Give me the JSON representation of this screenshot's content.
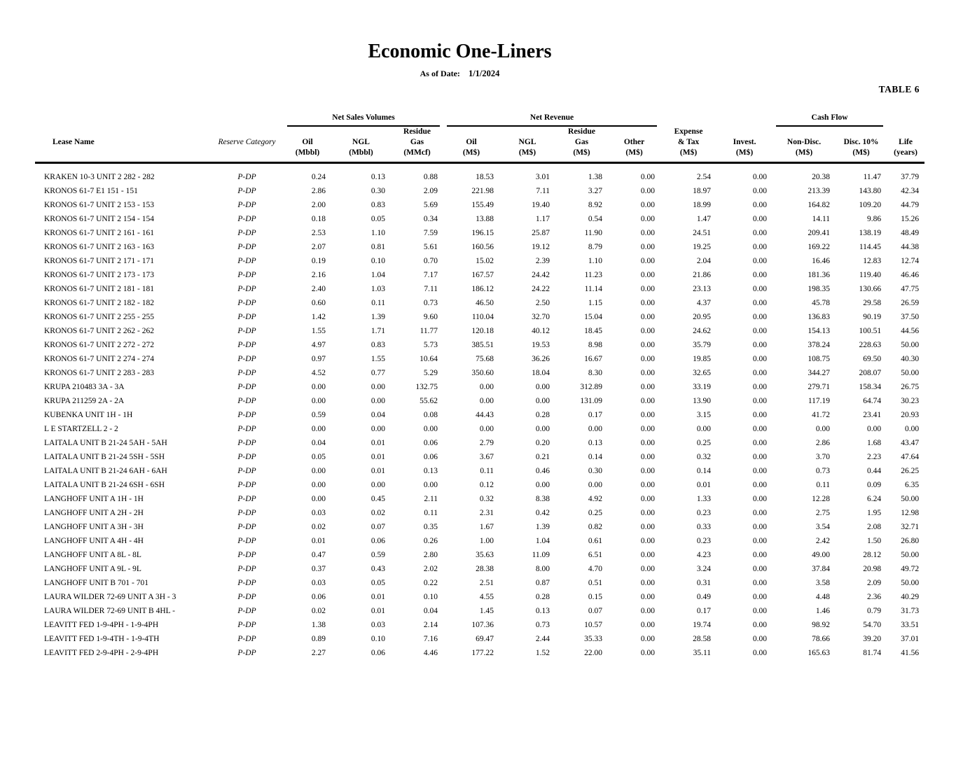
{
  "page": {
    "table_tag": "TABLE 6",
    "title": "Economic One-Liners",
    "as_of_label": "As of Date:",
    "as_of_date": "1/1/2024"
  },
  "table": {
    "groups": [
      {
        "label": "",
        "span": 2,
        "underline": false
      },
      {
        "label": "Net Sales Volumes",
        "span": 3,
        "underline": true
      },
      {
        "label": "Net Revenue",
        "span": 4,
        "underline": true
      },
      {
        "label": "",
        "span": 2,
        "underline": false
      },
      {
        "label": "Cash Flow",
        "span": 2,
        "underline": true
      },
      {
        "label": "",
        "span": 1,
        "underline": false
      }
    ],
    "columns": [
      {
        "name": "lease-name",
        "lines": [
          "Lease Name"
        ]
      },
      {
        "name": "reserve-category",
        "lines": [
          "Reserve Category"
        ]
      },
      {
        "name": "oil-volume",
        "lines": [
          "Oil",
          "(Mbbl)"
        ]
      },
      {
        "name": "ngl-volume",
        "lines": [
          "NGL",
          "(Mbbl)"
        ]
      },
      {
        "name": "residue-gas-volume",
        "lines": [
          "Residue",
          "Gas",
          "(MMcf)"
        ]
      },
      {
        "name": "oil-revenue",
        "lines": [
          "Oil",
          "(M$)"
        ]
      },
      {
        "name": "ngl-revenue",
        "lines": [
          "NGL",
          "(M$)"
        ]
      },
      {
        "name": "residue-gas-revenue",
        "lines": [
          "Residue",
          "Gas",
          "(M$)"
        ]
      },
      {
        "name": "other-revenue",
        "lines": [
          "Other",
          "(M$)"
        ]
      },
      {
        "name": "expense-tax",
        "lines": [
          "Expense",
          "& Tax",
          "(M$)"
        ]
      },
      {
        "name": "investment",
        "lines": [
          "Invest.",
          "(M$)"
        ]
      },
      {
        "name": "cash-flow-non-disc",
        "lines": [
          "Non-Disc.",
          "(M$)"
        ]
      },
      {
        "name": "cash-flow-disc-10",
        "lines": [
          "Disc. 10%",
          "(M$)"
        ]
      },
      {
        "name": "life",
        "lines": [
          "Life",
          "(years)"
        ]
      }
    ],
    "rows": [
      [
        "KRAKEN 10-3 UNIT 2 282 - 282",
        "P-DP",
        "0.24",
        "0.13",
        "0.88",
        "18.53",
        "3.01",
        "1.38",
        "0.00",
        "2.54",
        "0.00",
        "20.38",
        "11.47",
        "37.79"
      ],
      [
        "KRONOS 61-7 E1 151 - 151",
        "P-DP",
        "2.86",
        "0.30",
        "2.09",
        "221.98",
        "7.11",
        "3.27",
        "0.00",
        "18.97",
        "0.00",
        "213.39",
        "143.80",
        "42.34"
      ],
      [
        "KRONOS 61-7 UNIT 2 153 - 153",
        "P-DP",
        "2.00",
        "0.83",
        "5.69",
        "155.49",
        "19.40",
        "8.92",
        "0.00",
        "18.99",
        "0.00",
        "164.82",
        "109.20",
        "44.79"
      ],
      [
        "KRONOS 61-7 UNIT 2 154 - 154",
        "P-DP",
        "0.18",
        "0.05",
        "0.34",
        "13.88",
        "1.17",
        "0.54",
        "0.00",
        "1.47",
        "0.00",
        "14.11",
        "9.86",
        "15.26"
      ],
      [
        "KRONOS 61-7 UNIT 2 161 - 161",
        "P-DP",
        "2.53",
        "1.10",
        "7.59",
        "196.15",
        "25.87",
        "11.90",
        "0.00",
        "24.51",
        "0.00",
        "209.41",
        "138.19",
        "48.49"
      ],
      [
        "KRONOS 61-7 UNIT 2 163 - 163",
        "P-DP",
        "2.07",
        "0.81",
        "5.61",
        "160.56",
        "19.12",
        "8.79",
        "0.00",
        "19.25",
        "0.00",
        "169.22",
        "114.45",
        "44.38"
      ],
      [
        "KRONOS 61-7 UNIT 2 171 - 171",
        "P-DP",
        "0.19",
        "0.10",
        "0.70",
        "15.02",
        "2.39",
        "1.10",
        "0.00",
        "2.04",
        "0.00",
        "16.46",
        "12.83",
        "12.74"
      ],
      [
        "KRONOS 61-7 UNIT 2 173 - 173",
        "P-DP",
        "2.16",
        "1.04",
        "7.17",
        "167.57",
        "24.42",
        "11.23",
        "0.00",
        "21.86",
        "0.00",
        "181.36",
        "119.40",
        "46.46"
      ],
      [
        "KRONOS 61-7 UNIT 2 181 - 181",
        "P-DP",
        "2.40",
        "1.03",
        "7.11",
        "186.12",
        "24.22",
        "11.14",
        "0.00",
        "23.13",
        "0.00",
        "198.35",
        "130.66",
        "47.75"
      ],
      [
        "KRONOS 61-7 UNIT 2 182 - 182",
        "P-DP",
        "0.60",
        "0.11",
        "0.73",
        "46.50",
        "2.50",
        "1.15",
        "0.00",
        "4.37",
        "0.00",
        "45.78",
        "29.58",
        "26.59"
      ],
      [
        "KRONOS 61-7 UNIT 2 255 - 255",
        "P-DP",
        "1.42",
        "1.39",
        "9.60",
        "110.04",
        "32.70",
        "15.04",
        "0.00",
        "20.95",
        "0.00",
        "136.83",
        "90.19",
        "37.50"
      ],
      [
        "KRONOS 61-7 UNIT 2 262 - 262",
        "P-DP",
        "1.55",
        "1.71",
        "11.77",
        "120.18",
        "40.12",
        "18.45",
        "0.00",
        "24.62",
        "0.00",
        "154.13",
        "100.51",
        "44.56"
      ],
      [
        "KRONOS 61-7 UNIT 2 272 - 272",
        "P-DP",
        "4.97",
        "0.83",
        "5.73",
        "385.51",
        "19.53",
        "8.98",
        "0.00",
        "35.79",
        "0.00",
        "378.24",
        "228.63",
        "50.00"
      ],
      [
        "KRONOS 61-7 UNIT 2 274 - 274",
        "P-DP",
        "0.97",
        "1.55",
        "10.64",
        "75.68",
        "36.26",
        "16.67",
        "0.00",
        "19.85",
        "0.00",
        "108.75",
        "69.50",
        "40.30"
      ],
      [
        "KRONOS 61-7 UNIT 2 283 - 283",
        "P-DP",
        "4.52",
        "0.77",
        "5.29",
        "350.60",
        "18.04",
        "8.30",
        "0.00",
        "32.65",
        "0.00",
        "344.27",
        "208.07",
        "50.00"
      ],
      [
        "KRUPA 210483 3A - 3A",
        "P-DP",
        "0.00",
        "0.00",
        "132.75",
        "0.00",
        "0.00",
        "312.89",
        "0.00",
        "33.19",
        "0.00",
        "279.71",
        "158.34",
        "26.75"
      ],
      [
        "KRUPA 211259 2A - 2A",
        "P-DP",
        "0.00",
        "0.00",
        "55.62",
        "0.00",
        "0.00",
        "131.09",
        "0.00",
        "13.90",
        "0.00",
        "117.19",
        "64.74",
        "30.23"
      ],
      [
        "KUBENKA UNIT 1H - 1H",
        "P-DP",
        "0.59",
        "0.04",
        "0.08",
        "44.43",
        "0.28",
        "0.17",
        "0.00",
        "3.15",
        "0.00",
        "41.72",
        "23.41",
        "20.93"
      ],
      [
        "L E STARTZELL 2 - 2",
        "P-DP",
        "0.00",
        "0.00",
        "0.00",
        "0.00",
        "0.00",
        "0.00",
        "0.00",
        "0.00",
        "0.00",
        "0.00",
        "0.00",
        "0.00"
      ],
      [
        "LAITALA UNIT B 21-24 5AH - 5AH",
        "P-DP",
        "0.04",
        "0.01",
        "0.06",
        "2.79",
        "0.20",
        "0.13",
        "0.00",
        "0.25",
        "0.00",
        "2.86",
        "1.68",
        "43.47"
      ],
      [
        "LAITALA UNIT B 21-24 5SH - 5SH",
        "P-DP",
        "0.05",
        "0.01",
        "0.06",
        "3.67",
        "0.21",
        "0.14",
        "0.00",
        "0.32",
        "0.00",
        "3.70",
        "2.23",
        "47.64"
      ],
      [
        "LAITALA UNIT B 21-24 6AH - 6AH",
        "P-DP",
        "0.00",
        "0.01",
        "0.13",
        "0.11",
        "0.46",
        "0.30",
        "0.00",
        "0.14",
        "0.00",
        "0.73",
        "0.44",
        "26.25"
      ],
      [
        "LAITALA UNIT B 21-24 6SH - 6SH",
        "P-DP",
        "0.00",
        "0.00",
        "0.00",
        "0.12",
        "0.00",
        "0.00",
        "0.00",
        "0.01",
        "0.00",
        "0.11",
        "0.09",
        "6.35"
      ],
      [
        "LANGHOFF UNIT A 1H - 1H",
        "P-DP",
        "0.00",
        "0.45",
        "2.11",
        "0.32",
        "8.38",
        "4.92",
        "0.00",
        "1.33",
        "0.00",
        "12.28",
        "6.24",
        "50.00"
      ],
      [
        "LANGHOFF UNIT A 2H - 2H",
        "P-DP",
        "0.03",
        "0.02",
        "0.11",
        "2.31",
        "0.42",
        "0.25",
        "0.00",
        "0.23",
        "0.00",
        "2.75",
        "1.95",
        "12.98"
      ],
      [
        "LANGHOFF UNIT A 3H - 3H",
        "P-DP",
        "0.02",
        "0.07",
        "0.35",
        "1.67",
        "1.39",
        "0.82",
        "0.00",
        "0.33",
        "0.00",
        "3.54",
        "2.08",
        "32.71"
      ],
      [
        "LANGHOFF UNIT A 4H - 4H",
        "P-DP",
        "0.01",
        "0.06",
        "0.26",
        "1.00",
        "1.04",
        "0.61",
        "0.00",
        "0.23",
        "0.00",
        "2.42",
        "1.50",
        "26.80"
      ],
      [
        "LANGHOFF UNIT A 8L - 8L",
        "P-DP",
        "0.47",
        "0.59",
        "2.80",
        "35.63",
        "11.09",
        "6.51",
        "0.00",
        "4.23",
        "0.00",
        "49.00",
        "28.12",
        "50.00"
      ],
      [
        "LANGHOFF UNIT A 9L - 9L",
        "P-DP",
        "0.37",
        "0.43",
        "2.02",
        "28.38",
        "8.00",
        "4.70",
        "0.00",
        "3.24",
        "0.00",
        "37.84",
        "20.98",
        "49.72"
      ],
      [
        "LANGHOFF UNIT B 701 - 701",
        "P-DP",
        "0.03",
        "0.05",
        "0.22",
        "2.51",
        "0.87",
        "0.51",
        "0.00",
        "0.31",
        "0.00",
        "3.58",
        "2.09",
        "50.00"
      ],
      [
        "LAURA WILDER 72-69 UNIT A 3H - 3",
        "P-DP",
        "0.06",
        "0.01",
        "0.10",
        "4.55",
        "0.28",
        "0.15",
        "0.00",
        "0.49",
        "0.00",
        "4.48",
        "2.36",
        "40.29"
      ],
      [
        "LAURA WILDER 72-69 UNIT B 4HL -",
        "P-DP",
        "0.02",
        "0.01",
        "0.04",
        "1.45",
        "0.13",
        "0.07",
        "0.00",
        "0.17",
        "0.00",
        "1.46",
        "0.79",
        "31.73"
      ],
      [
        "LEAVITT FED 1-9-4PH - 1-9-4PH",
        "P-DP",
        "1.38",
        "0.03",
        "2.14",
        "107.36",
        "0.73",
        "10.57",
        "0.00",
        "19.74",
        "0.00",
        "98.92",
        "54.70",
        "33.51"
      ],
      [
        "LEAVITT FED 1-9-4TH - 1-9-4TH",
        "P-DP",
        "0.89",
        "0.10",
        "7.16",
        "69.47",
        "2.44",
        "35.33",
        "0.00",
        "28.58",
        "0.00",
        "78.66",
        "39.20",
        "37.01"
      ],
      [
        "LEAVITT FED 2-9-4PH - 2-9-4PH",
        "P-DP",
        "2.27",
        "0.06",
        "4.46",
        "177.22",
        "1.52",
        "22.00",
        "0.00",
        "35.11",
        "0.00",
        "165.63",
        "81.74",
        "41.56"
      ]
    ]
  }
}
